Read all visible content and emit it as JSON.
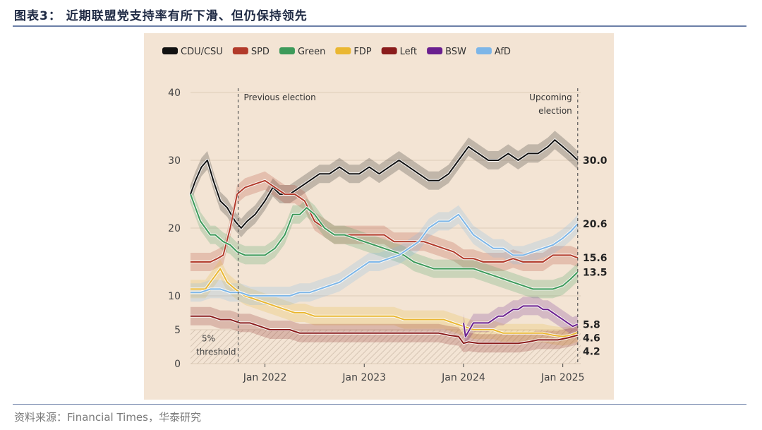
{
  "figure": {
    "title": "图表3：  近期联盟党支持率有所下滑、但仍保持领先",
    "source": "资料来源：Financial Times，华泰研究"
  },
  "chart_data": {
    "type": "line",
    "title": "",
    "xlabel": "",
    "ylabel": "",
    "x_range": [
      2021.25,
      2025.18
    ],
    "ylim": [
      0,
      40
    ],
    "y_ticks": [
      "0",
      "5",
      "10",
      "20",
      "30",
      "40"
    ],
    "y_tick_values": [
      0,
      5,
      10,
      20,
      30,
      40
    ],
    "x_ticks": [
      {
        "label": "Jan 2022",
        "value": 2022.0
      },
      {
        "label": "Jan 2023",
        "value": 2023.0
      },
      {
        "label": "Jan 2024",
        "value": 2024.0
      },
      {
        "label": "Jan 2025",
        "value": 2025.0
      }
    ],
    "grid": true,
    "legend_position": "top",
    "annotations": {
      "previous_election": {
        "label": "Previous election",
        "x": 2021.73
      },
      "upcoming_election": {
        "label_line1": "Upcoming",
        "label_line2": "election",
        "x": 2025.15
      },
      "threshold": {
        "label_line1": "5%",
        "label_line2": "threshold",
        "y": 5
      }
    },
    "series": [
      {
        "name": "CDU/CSU",
        "color": "#111111",
        "end_label": "30.0",
        "x": [
          2021.25,
          2021.3,
          2021.36,
          2021.42,
          2021.48,
          2021.55,
          2021.62,
          2021.7,
          2021.76,
          2021.82,
          2021.9,
          2022.0,
          2022.08,
          2022.15,
          2022.25,
          2022.35,
          2022.45,
          2022.55,
          2022.65,
          2022.75,
          2022.85,
          2022.95,
          2023.05,
          2023.15,
          2023.25,
          2023.35,
          2023.45,
          2023.55,
          2023.65,
          2023.75,
          2023.85,
          2023.95,
          2024.0,
          2024.05,
          2024.15,
          2024.25,
          2024.35,
          2024.45,
          2024.55,
          2024.65,
          2024.75,
          2024.85,
          2024.92,
          2025.0,
          2025.08,
          2025.15
        ],
        "values": [
          25,
          27,
          29,
          30,
          27,
          24,
          23,
          21,
          20,
          21,
          22,
          24,
          26,
          25,
          25,
          26,
          27,
          28,
          28,
          29,
          28,
          28,
          29,
          28,
          29,
          30,
          29,
          28,
          27,
          27,
          28,
          30,
          31,
          32,
          31,
          30,
          30,
          31,
          30,
          31,
          31,
          32,
          33,
          32,
          31,
          30
        ]
      },
      {
        "name": "SPD",
        "color": "#b23a2a",
        "end_label": "15.6",
        "x": [
          2021.25,
          2021.35,
          2021.45,
          2021.52,
          2021.58,
          2021.65,
          2021.72,
          2021.8,
          2021.9,
          2022.0,
          2022.1,
          2022.2,
          2022.3,
          2022.4,
          2022.5,
          2022.6,
          2022.7,
          2022.8,
          2022.9,
          2023.0,
          2023.1,
          2023.2,
          2023.3,
          2023.4,
          2023.5,
          2023.6,
          2023.7,
          2023.8,
          2023.9,
          2024.0,
          2024.1,
          2024.2,
          2024.3,
          2024.4,
          2024.5,
          2024.6,
          2024.7,
          2024.8,
          2024.9,
          2025.0,
          2025.08,
          2025.15
        ],
        "values": [
          15,
          15,
          15,
          15.5,
          16,
          20,
          25,
          26,
          26.5,
          27,
          26,
          25,
          25,
          24,
          21,
          20,
          19,
          19,
          19,
          19,
          19,
          19,
          18,
          18,
          18,
          18,
          17.5,
          17,
          16.5,
          15.5,
          15.5,
          15,
          15,
          15,
          15.5,
          15,
          15,
          15,
          16,
          16,
          16,
          15.6
        ]
      },
      {
        "name": "Green",
        "color": "#3d9a5a",
        "end_label": "13.5",
        "x": [
          2021.25,
          2021.3,
          2021.35,
          2021.4,
          2021.45,
          2021.5,
          2021.58,
          2021.65,
          2021.72,
          2021.8,
          2021.9,
          2022.0,
          2022.1,
          2022.2,
          2022.28,
          2022.35,
          2022.42,
          2022.5,
          2022.6,
          2022.7,
          2022.8,
          2022.9,
          2023.0,
          2023.1,
          2023.2,
          2023.3,
          2023.4,
          2023.5,
          2023.6,
          2023.7,
          2023.8,
          2023.9,
          2024.0,
          2024.1,
          2024.2,
          2024.3,
          2024.4,
          2024.5,
          2024.6,
          2024.7,
          2024.8,
          2024.9,
          2025.0,
          2025.08,
          2025.15
        ],
        "values": [
          25,
          23,
          21,
          20,
          19,
          19,
          18,
          17.5,
          16.5,
          16,
          16,
          16,
          17,
          19,
          22,
          22,
          23,
          22,
          20,
          19,
          19,
          18.5,
          18,
          17.5,
          17,
          16.5,
          16,
          15,
          14.5,
          14,
          14,
          14,
          14,
          14,
          13.5,
          13,
          12.5,
          12,
          11.5,
          11,
          11,
          11,
          11.5,
          12.5,
          13.5
        ]
      },
      {
        "name": "FDP",
        "color": "#eab732",
        "end_label": "4.6",
        "x": [
          2021.25,
          2021.3,
          2021.35,
          2021.4,
          2021.45,
          2021.5,
          2021.55,
          2021.62,
          2021.7,
          2021.8,
          2021.9,
          2022.0,
          2022.1,
          2022.2,
          2022.3,
          2022.4,
          2022.5,
          2022.6,
          2022.7,
          2022.8,
          2022.9,
          2023.0,
          2023.1,
          2023.2,
          2023.3,
          2023.4,
          2023.5,
          2023.6,
          2023.7,
          2023.8,
          2023.9,
          2024.0,
          2024.1,
          2024.2,
          2024.3,
          2024.4,
          2024.5,
          2024.6,
          2024.7,
          2024.8,
          2024.9,
          2025.0,
          2025.08,
          2025.15
        ],
        "values": [
          11,
          11,
          11,
          11,
          12,
          13,
          14,
          12,
          11,
          10,
          9.5,
          9,
          8.5,
          8,
          7.5,
          7.5,
          7,
          7,
          7,
          7,
          7,
          7,
          7,
          7,
          7,
          6.5,
          6.5,
          6.5,
          6.5,
          6.5,
          6,
          5.5,
          5,
          5,
          5,
          4.5,
          4.5,
          4.5,
          4.5,
          4.5,
          4.2,
          4,
          4.2,
          4.6
        ]
      },
      {
        "name": "Left",
        "color": "#8a1c1c",
        "end_label": "4.2",
        "x": [
          2021.25,
          2021.35,
          2021.45,
          2021.55,
          2021.65,
          2021.75,
          2021.85,
          2021.95,
          2022.05,
          2022.15,
          2022.25,
          2022.35,
          2022.45,
          2022.55,
          2022.65,
          2022.75,
          2022.85,
          2022.95,
          2023.05,
          2023.15,
          2023.25,
          2023.35,
          2023.45,
          2023.55,
          2023.65,
          2023.75,
          2023.85,
          2023.95,
          2024.0,
          2024.05,
          2024.15,
          2024.25,
          2024.35,
          2024.45,
          2024.55,
          2024.65,
          2024.75,
          2024.85,
          2024.95,
          2025.05,
          2025.15
        ],
        "values": [
          7,
          7,
          7,
          6.5,
          6.5,
          6,
          6,
          5.5,
          5,
          5,
          5,
          4.5,
          4.5,
          4.5,
          4.5,
          4.5,
          4.5,
          4.5,
          4.5,
          4.5,
          4.5,
          4.5,
          4.5,
          4.5,
          4.5,
          4.5,
          4.2,
          4,
          3,
          3.2,
          3,
          3,
          3,
          3,
          3,
          3.2,
          3.5,
          3.5,
          3.5,
          3.8,
          4.2
        ]
      },
      {
        "name": "BSW",
        "color": "#6a1f8f",
        "end_label": "5.8",
        "x": [
          2024.0,
          2024.02,
          2024.06,
          2024.1,
          2024.15,
          2024.2,
          2024.25,
          2024.3,
          2024.35,
          2024.4,
          2024.45,
          2024.5,
          2024.55,
          2024.6,
          2024.65,
          2024.7,
          2024.75,
          2024.8,
          2024.85,
          2024.9,
          2024.95,
          2025.0,
          2025.05,
          2025.1,
          2025.15
        ],
        "values": [
          6,
          4,
          5,
          6,
          6,
          6,
          6,
          6.5,
          7,
          7,
          7.5,
          8,
          8,
          8.5,
          8.5,
          8.5,
          8.5,
          8,
          8,
          7.5,
          7,
          6.5,
          6,
          5.5,
          5.8
        ]
      },
      {
        "name": "AfD",
        "color": "#7db6e8",
        "end_label": "20.6",
        "x": [
          2021.25,
          2021.35,
          2021.45,
          2021.55,
          2021.65,
          2021.75,
          2021.85,
          2021.95,
          2022.05,
          2022.15,
          2022.25,
          2022.35,
          2022.45,
          2022.55,
          2022.65,
          2022.75,
          2022.85,
          2022.95,
          2023.05,
          2023.15,
          2023.25,
          2023.35,
          2023.45,
          2023.55,
          2023.65,
          2023.75,
          2023.85,
          2023.9,
          2023.95,
          2024.0,
          2024.05,
          2024.1,
          2024.15,
          2024.2,
          2024.3,
          2024.4,
          2024.5,
          2024.6,
          2024.7,
          2024.8,
          2024.9,
          2025.0,
          2025.08,
          2025.15
        ],
        "values": [
          10.5,
          10.5,
          11,
          11,
          10.5,
          10.5,
          10,
          10,
          10,
          10,
          10,
          10.5,
          10.5,
          11,
          11.5,
          12,
          13,
          14,
          15,
          15,
          15.5,
          16,
          17,
          18,
          20,
          21,
          21,
          21.5,
          22,
          21,
          20,
          19,
          18.5,
          18,
          17,
          17,
          16,
          16,
          16.5,
          17,
          17.5,
          18.5,
          19.5,
          20.6
        ]
      }
    ]
  }
}
